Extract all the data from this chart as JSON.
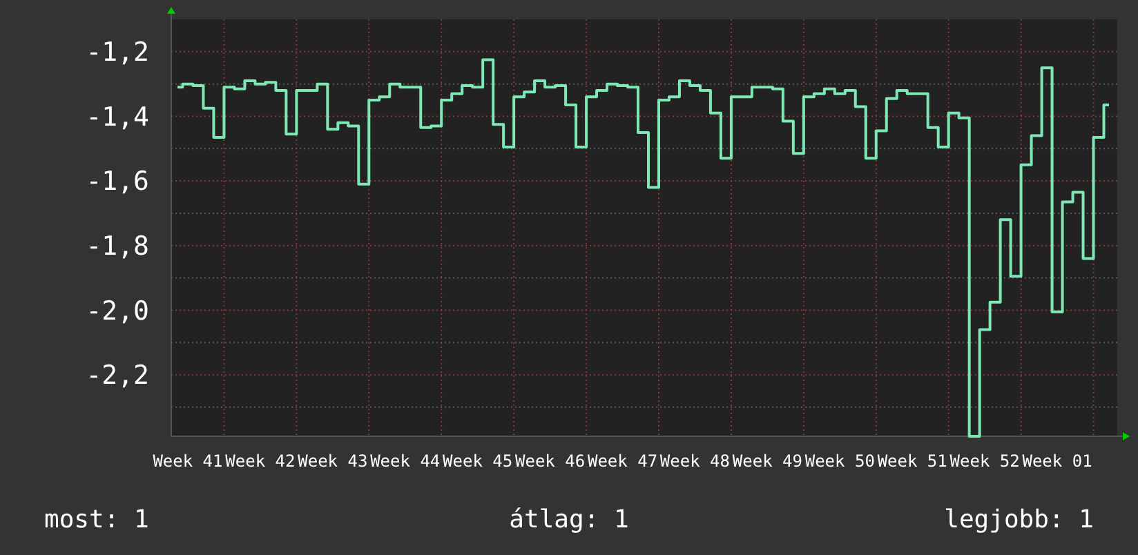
{
  "chart_data": {
    "type": "step",
    "categories": [
      null,
      "Week 41",
      null,
      null,
      null,
      null,
      null,
      null,
      "Week 42",
      null,
      null,
      null,
      null,
      null,
      null,
      "Week 43",
      null,
      null,
      null,
      null,
      null,
      null,
      "Week 44",
      null,
      null,
      null,
      null,
      null,
      null,
      "Week 45",
      null,
      null,
      null,
      null,
      null,
      null,
      "Week 46",
      null,
      null,
      null,
      null,
      null,
      null,
      "Week 47",
      null,
      null,
      null,
      null,
      null,
      null,
      "Week 48",
      null,
      null,
      null,
      null,
      null,
      null,
      "Week 49",
      null,
      null,
      null,
      null,
      null,
      null,
      "Week 50",
      null,
      null,
      null,
      null,
      null,
      null,
      "Week 51",
      null,
      null,
      null,
      null,
      null,
      null,
      "Week 52",
      null,
      null,
      null,
      null,
      null,
      null,
      "Week 01",
      null,
      null,
      null,
      null,
      null
    ],
    "series": [
      {
        "color": "#7ee8b4",
        "values": [
          -1.31,
          -1.3,
          -1.305,
          -1.375,
          -1.465,
          -1.31,
          -1.315,
          -1.29,
          -1.3,
          -1.295,
          -1.32,
          -1.455,
          -1.32,
          -1.32,
          -1.3,
          -1.44,
          -1.42,
          -1.43,
          -1.61,
          -1.35,
          -1.34,
          -1.3,
          -1.31,
          -1.31,
          -1.435,
          -1.43,
          -1.35,
          -1.33,
          -1.305,
          -1.31,
          -1.225,
          -1.425,
          -1.495,
          -1.34,
          -1.325,
          -1.29,
          -1.31,
          -1.305,
          -1.365,
          -1.495,
          -1.34,
          -1.32,
          -1.3,
          -1.305,
          -1.31,
          -1.45,
          -1.62,
          -1.35,
          -1.34,
          -1.29,
          -1.305,
          -1.32,
          -1.39,
          -1.53,
          -1.34,
          -1.34,
          -1.31,
          -1.31,
          -1.315,
          -1.415,
          -1.515,
          -1.34,
          -1.33,
          -1.315,
          -1.33,
          -1.32,
          -1.37,
          -1.53,
          -1.445,
          -1.345,
          -1.32,
          -1.33,
          -1.33,
          -1.435,
          -1.495,
          -1.39,
          -1.405,
          -2.39,
          -2.06,
          -1.975,
          -1.72,
          -1.895,
          -1.55,
          -1.46,
          -1.25,
          -2.005,
          -1.665,
          -1.635,
          -1.84,
          -1.465,
          -1.365
        ]
      }
    ],
    "ylim": [
      -2.39,
      -1.1
    ],
    "yticks": [
      {
        "value": -1.2,
        "label": "-1,2"
      },
      {
        "value": -1.4,
        "label": "-1,4"
      },
      {
        "value": -1.6,
        "label": "-1,6"
      },
      {
        "value": -1.8,
        "label": "-1,8"
      },
      {
        "value": -2.0,
        "label": "-2,0"
      },
      {
        "value": -2.2,
        "label": "-2,2"
      },
      {
        "value": -1.3,
        "label": null
      },
      {
        "value": -1.5,
        "label": null
      },
      {
        "value": -1.7,
        "label": null
      },
      {
        "value": -1.9,
        "label": null
      },
      {
        "value": -2.1,
        "label": null
      },
      {
        "value": -2.3,
        "label": null
      }
    ],
    "grid": true,
    "annotations": [
      "most: 1",
      "átlag: 1",
      "legjobb: 1"
    ]
  }
}
